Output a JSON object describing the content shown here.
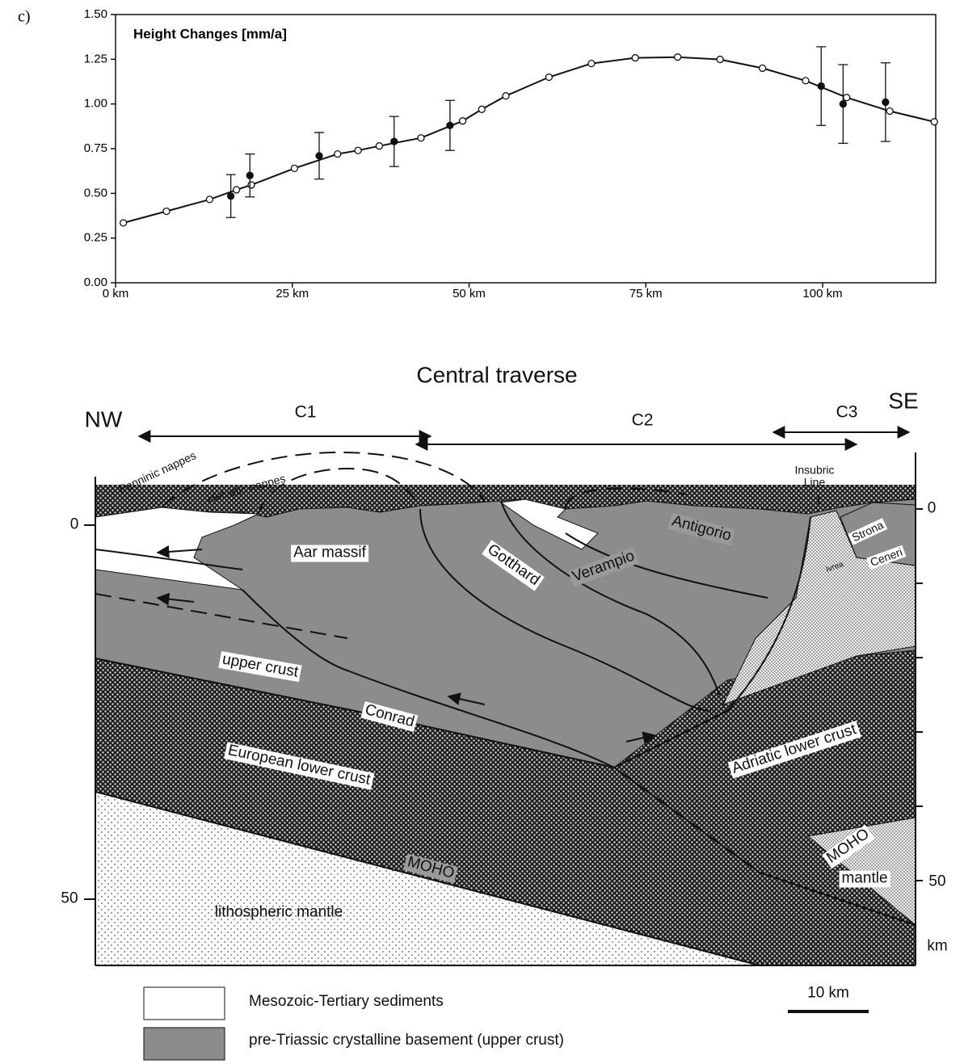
{
  "figure_label": "c)",
  "chart_data": {
    "type": "line",
    "title": "Height Changes [mm/a]",
    "xlim": [
      0,
      116
    ],
    "ylim": [
      0,
      1.5
    ],
    "xticks": [
      {
        "value": 0,
        "label": "0 km"
      },
      {
        "value": 25,
        "label": "25 km"
      },
      {
        "value": 50,
        "label": "50 km"
      },
      {
        "value": 75,
        "label": "75 km"
      },
      {
        "value": 100,
        "label": "100 km"
      }
    ],
    "yticks": [
      {
        "value": 0,
        "label": "0.00"
      },
      {
        "value": 0.25,
        "label": "0.25"
      },
      {
        "value": 0.5,
        "label": "0.50"
      },
      {
        "value": 0.75,
        "label": "0.75"
      },
      {
        "value": 1,
        "label": "1.00"
      },
      {
        "value": 1.25,
        "label": "1.25"
      },
      {
        "value": 1.5,
        "label": "1.50"
      }
    ],
    "series": [
      {
        "color": "#111111",
        "marker": "open-circle",
        "x": [
          1.1,
          7.2,
          13.3,
          17.1,
          19.2,
          25.3,
          31.4,
          34.3,
          37.3,
          43.2,
          49.1,
          51.8,
          55.2,
          61.3,
          67.3,
          73.5,
          79.5,
          85.5,
          91.5,
          97.6,
          103.4,
          109.5,
          115.8
        ],
        "values": [
          0.335,
          0.4,
          0.466,
          0.52,
          0.547,
          0.64,
          0.72,
          0.74,
          0.765,
          0.81,
          0.905,
          0.97,
          1.045,
          1.15,
          1.226,
          1.258,
          1.262,
          1.249,
          1.2,
          1.13,
          1.036,
          0.96,
          0.9
        ]
      },
      {
        "color": "#111111",
        "marker": "filled-circle",
        "x": [
          16.3,
          19.0,
          28.8,
          39.4,
          47.3,
          99.8,
          102.9,
          108.9
        ],
        "values": [
          0.485,
          0.6,
          0.71,
          0.79,
          0.88,
          1.1,
          1.0,
          1.01
        ],
        "errors": [
          0.12,
          0.12,
          0.13,
          0.14,
          0.14,
          0.22,
          0.22,
          0.22
        ]
      }
    ]
  },
  "section": {
    "title": "Central traverse",
    "left_end": "NW",
    "right_end": "SE",
    "segments": [
      "C1",
      "C2",
      "C3"
    ],
    "labels": [
      "Penninic nappes",
      "Helvetic nappes",
      "Insubric Line",
      "Aar massif",
      "Gotthard",
      "Verampio",
      "Antigorio",
      "Strona",
      "Ceneri",
      "Ivrea",
      "upper crust",
      "Conrad",
      "European lower crust",
      "Adriatic lower crust",
      "MOHO",
      "MOHO",
      "mantle",
      "lithospheric mantle"
    ],
    "depth_left": [
      0,
      50
    ],
    "depth_right": [
      0,
      50
    ],
    "depth_unit": "km",
    "scale_bar": "10 km"
  },
  "legend": [
    "Mesozoic-Tertiary sediments",
    "pre-Triassic crystalline basement (upper crust)"
  ]
}
